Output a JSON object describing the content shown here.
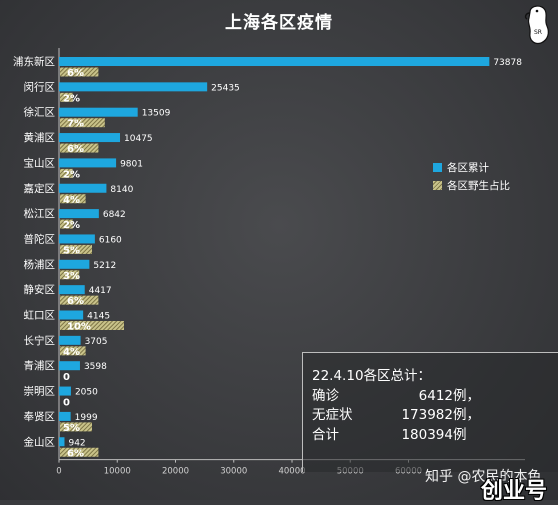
{
  "chart_data": {
    "type": "bar",
    "title": "上海各区疫情",
    "categories": [
      "浦东新区",
      "闵行区",
      "徐汇区",
      "黄浦区",
      "宝山区",
      "嘉定区",
      "松江区",
      "普陀区",
      "杨浦区",
      "静安区",
      "虹口区",
      "长宁区",
      "青浦区",
      "崇明区",
      "奉贤区",
      "金山区"
    ],
    "series": [
      {
        "name": "各区累计",
        "color": "#1ea7df",
        "values": [
          73878,
          25435,
          13509,
          10475,
          9801,
          8140,
          6842,
          6160,
          5212,
          4417,
          4145,
          3705,
          3598,
          2050,
          1999,
          942
        ]
      },
      {
        "name": "各区野生占比",
        "color": "#c9c38a",
        "values": [
          6,
          2,
          7,
          6,
          2,
          4,
          2,
          5,
          3,
          6,
          10,
          4,
          0,
          0,
          5,
          6
        ],
        "labels": [
          "6%",
          "2%",
          "7%",
          "6%",
          "2%",
          "4%",
          "2%",
          "5%",
          "3%",
          "6%",
          "10%",
          "4%",
          "0",
          "0",
          "5%",
          "6%"
        ]
      }
    ],
    "x_ticks": [
      "0",
      "10000",
      "20000",
      "30000",
      "40000",
      "50000",
      "60000"
    ],
    "xlim": [
      0,
      80000
    ],
    "pct_scale_max": 0.6,
    "grid": false,
    "legend_position": "right"
  },
  "summary": {
    "heading": "22.4.10各区总计：",
    "rows": [
      {
        "key": "确诊",
        "value": "6412",
        "unit": "例，"
      },
      {
        "key": "无症状",
        "value": "173982",
        "unit": "例，"
      },
      {
        "key": "合计",
        "value": "180394",
        "unit": "例"
      }
    ]
  },
  "watermark": "知乎 @农民的本色",
  "corner_text": "创业号",
  "logo_text": "SR"
}
